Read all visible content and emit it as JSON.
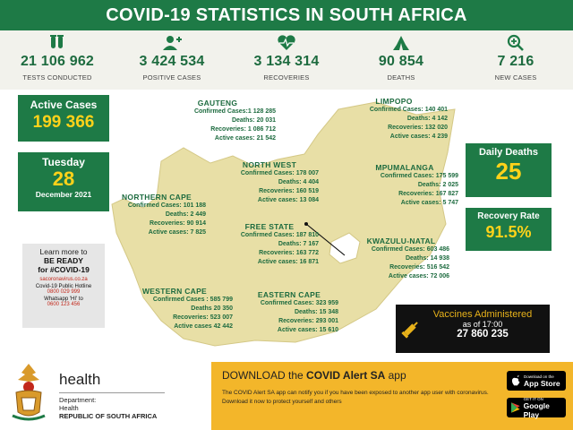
{
  "header": {
    "title": "COVID-19 STATISTICS IN SOUTH AFRICA"
  },
  "stats": [
    {
      "icon": "test-tubes-icon",
      "value": "21 106 962",
      "label": "TESTS CONDUCTED"
    },
    {
      "icon": "add-person-icon",
      "value": "3 424 534",
      "label": "POSITIVE CASES"
    },
    {
      "icon": "heartbeat-icon",
      "value": "3 134 314",
      "label": "RECOVERIES"
    },
    {
      "icon": "praying-hands-icon",
      "value": "90 854",
      "label": "DEATHS"
    },
    {
      "icon": "magnifier-plus-icon",
      "value": "7 216",
      "label": "NEW CASES"
    }
  ],
  "active": {
    "title": "Active Cases",
    "value": "199 366"
  },
  "date": {
    "weekday": "Tuesday",
    "day": "28",
    "month_year": "December 2021"
  },
  "learn": {
    "line1": "Learn more to",
    "line2": "BE READY",
    "line3": "for #COVID-19",
    "site": "sacoronavirus.co.za",
    "hotline_label": "Covid-19 Public Hotline",
    "hotline": "0800 029 999",
    "whatsapp_label": "Whatsapp 'HI' to",
    "whatsapp": "0600 123 456"
  },
  "provinces": {
    "gauteng": {
      "name": "GAUTENG",
      "confirmed": "Confirmed Cases:1 128 285",
      "deaths": "Deaths: 20 031",
      "recoveries": "Recoveries: 1 086 712",
      "active": "Active cases: 21 542"
    },
    "limpopo": {
      "name": "LIMPOPO",
      "confirmed": "Confirmed Cases: 140 401",
      "deaths": "Deaths: 4 142",
      "recoveries": "Recoveries: 132 020",
      "active": "Active cases: 4 239"
    },
    "north_west": {
      "name": "NORTH WEST",
      "confirmed": "Confirmed Cases: 178 007",
      "deaths": "Deaths: 4 404",
      "recoveries": "Recoveries: 160 519",
      "active": "Active cases: 13 084"
    },
    "mpumalanga": {
      "name": "MPUMALANGA",
      "confirmed": "Confirmed Cases: 175 599",
      "deaths": "Deaths: 2 025",
      "recoveries": "Recoveries: 167 827",
      "active": "Active cases: 5 747"
    },
    "northern_cape": {
      "name": "NORTHERN CAPE",
      "confirmed": "Confirmed Cases: 101 188",
      "deaths": "Deaths: 2 449",
      "recoveries": "Recoveries: 90 914",
      "active": "Active cases: 7 825"
    },
    "free_state": {
      "name": "FREE STATE",
      "confirmed": "Confirmed Cases: 187 810",
      "deaths": "Deaths: 7 167",
      "recoveries": "Recoveries: 163 772",
      "active": "Active cases: 16 871"
    },
    "kwazulu_natal": {
      "name": "KWAZULU-NATAL",
      "confirmed": "Confirmed Cases: 603 486",
      "deaths": "Deaths: 14 938",
      "recoveries": "Recoveries: 516 542",
      "active": "Active cases: 72 006"
    },
    "western_cape": {
      "name": "WESTERN CAPE",
      "confirmed": "Confirmed Cases : 585 799",
      "deaths": "Deaths 20 350",
      "recoveries": "Recoveries: 523 007",
      "active": "Active cases 42 442"
    },
    "eastern_cape": {
      "name": "EASTERN CAPE",
      "confirmed": "Confirmed Cases: 323 959",
      "deaths": "Deaths: 15 348",
      "recoveries": "Recoveries: 293 001",
      "active": "Active cases: 15 610"
    }
  },
  "daily_deaths": {
    "title": "Daily Deaths",
    "value": "25"
  },
  "recovery_rate": {
    "title": "Recovery Rate",
    "value": "91.5%"
  },
  "vaccines": {
    "title": "Vaccines Administered",
    "subtitle": "as of 17:00",
    "value": "27 860 235"
  },
  "department": {
    "brand": "health",
    "line1": "Department:",
    "line2": "Health",
    "line3": "REPUBLIC OF SOUTH AFRICA"
  },
  "app": {
    "title_prefix": "DOWNLOAD the ",
    "title_bold": "COVID Alert SA",
    "title_suffix": " app",
    "description": "The COVID Alert SA app can notify you if you have been exposed to another app user with coronavirus. Download it now to protect yourself and others",
    "app_store_small": "Download on the",
    "app_store": "App Store",
    "google_small": "GET IT ON",
    "google": "Google Play"
  },
  "colors": {
    "green": "#1e7a46",
    "yellow": "#ffd21a",
    "map": "#e8dfa6",
    "app_band": "#f3b62a"
  }
}
